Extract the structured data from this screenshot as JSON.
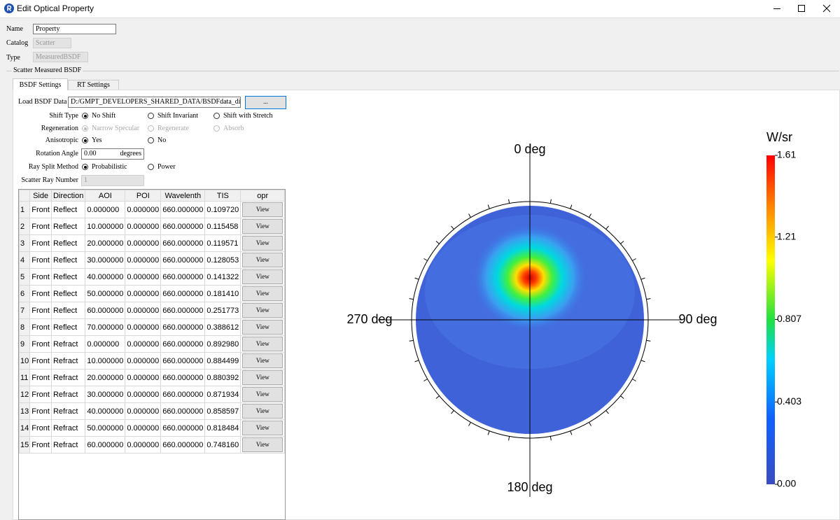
{
  "window": {
    "title": "Edit Optical Property"
  },
  "form": {
    "name": {
      "label": "Name",
      "value": "Property"
    },
    "catalog": {
      "label": "Catalog",
      "value": "Scatter"
    },
    "type": {
      "label": "Type",
      "value": "MeasuredBSDF"
    }
  },
  "group_title": "Scatter Measured BSDF",
  "tabs": {
    "items": [
      "BSDF Settings",
      "RT Settings"
    ],
    "active": 0
  },
  "settings": {
    "load": {
      "label": "Load BSDF Data",
      "path": "D:/GMPT_DEVELOPERS_SHARED_DATA/BSDFdata_diff/master",
      "button": "..."
    },
    "radios": [
      {
        "label": "Shift Type",
        "options": [
          "No Shift",
          "Shift Invariant",
          "Shift with Stretch"
        ],
        "selected": 0,
        "enabled": true
      },
      {
        "label": "Regeneration",
        "options": [
          "Narrow Specular",
          "Regenerate",
          "Absorb"
        ],
        "selected": 0,
        "enabled": false
      },
      {
        "label": "Anisotropic",
        "options": [
          "Yes",
          "No"
        ],
        "selected": 0,
        "enabled": true
      },
      {
        "label": "Ray Split Method",
        "options": [
          "Probabilistic",
          "Power"
        ],
        "selected": 0,
        "enabled": true
      }
    ],
    "rotation": {
      "label": "Rotation Angle",
      "value": "0.00",
      "unit": "degrees"
    },
    "ray_number": {
      "label": "Scatter Ray Number",
      "value": "1"
    }
  },
  "table": {
    "columns": [
      "Side",
      "Direction",
      "AOI",
      "POI",
      "Wavelenth",
      "TIS",
      "opr"
    ],
    "rows": [
      {
        "index": "1",
        "cells": [
          "Front",
          "Reflect",
          "0.000000",
          "0.000000",
          "660.000000",
          "0.109720",
          "View"
        ]
      },
      {
        "index": "2",
        "cells": [
          "Front",
          "Reflect",
          "10.000000",
          "0.000000",
          "660.000000",
          "0.115458",
          "View"
        ]
      },
      {
        "index": "3",
        "cells": [
          "Front",
          "Reflect",
          "20.000000",
          "0.000000",
          "660.000000",
          "0.119571",
          "View"
        ]
      },
      {
        "index": "4",
        "cells": [
          "Front",
          "Reflect",
          "30.000000",
          "0.000000",
          "660.000000",
          "0.128053",
          "View"
        ]
      },
      {
        "index": "5",
        "cells": [
          "Front",
          "Reflect",
          "40.000000",
          "0.000000",
          "660.000000",
          "0.141322",
          "View"
        ]
      },
      {
        "index": "6",
        "cells": [
          "Front",
          "Reflect",
          "50.000000",
          "0.000000",
          "660.000000",
          "0.181410",
          "View"
        ]
      },
      {
        "index": "7",
        "cells": [
          "Front",
          "Reflect",
          "60.000000",
          "0.000000",
          "660.000000",
          "0.251773",
          "View"
        ]
      },
      {
        "index": "8",
        "cells": [
          "Front",
          "Reflect",
          "70.000000",
          "0.000000",
          "660.000000",
          "0.388612",
          "View"
        ]
      },
      {
        "index": "9",
        "cells": [
          "Front",
          "Refract",
          "0.000000",
          "0.000000",
          "660.000000",
          "0.892980",
          "View"
        ]
      },
      {
        "index": "10",
        "cells": [
          "Front",
          "Refract",
          "10.000000",
          "0.000000",
          "660.000000",
          "0.884499",
          "View"
        ]
      },
      {
        "index": "11",
        "cells": [
          "Front",
          "Refract",
          "20.000000",
          "0.000000",
          "660.000000",
          "0.880392",
          "View"
        ]
      },
      {
        "index": "12",
        "cells": [
          "Front",
          "Refract",
          "30.000000",
          "0.000000",
          "660.000000",
          "0.871934",
          "View"
        ]
      },
      {
        "index": "13",
        "cells": [
          "Front",
          "Refract",
          "40.000000",
          "0.000000",
          "660.000000",
          "0.858597",
          "View"
        ]
      },
      {
        "index": "14",
        "cells": [
          "Front",
          "Refract",
          "50.000000",
          "0.000000",
          "660.000000",
          "0.818484",
          "View"
        ]
      },
      {
        "index": "15",
        "cells": [
          "Front",
          "Refract",
          "60.000000",
          "0.000000",
          "660.000000",
          "0.748160",
          "View"
        ]
      }
    ]
  },
  "plot": {
    "title": "W/sr",
    "angle_labels": [
      "0 deg",
      "90 deg",
      "180 deg",
      "270 deg"
    ],
    "colorbar": {
      "range": [
        0,
        1.61
      ],
      "ticks": [
        1.61,
        1.21,
        0.807,
        0.403,
        {
          "value": 0,
          "label": "0.00"
        }
      ]
    }
  }
}
